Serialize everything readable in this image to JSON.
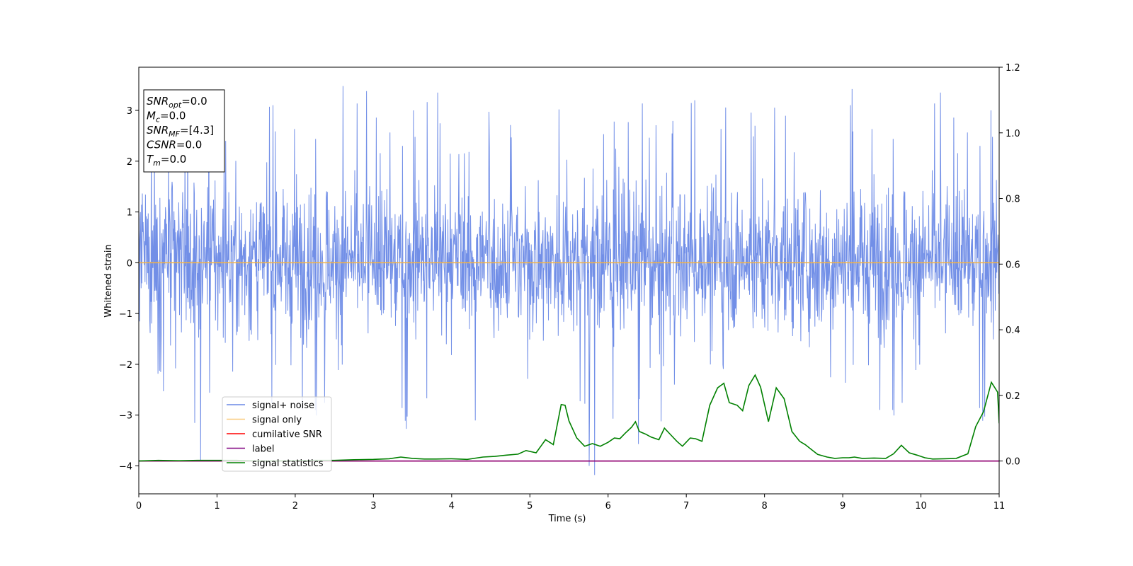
{
  "chart_data": {
    "type": "line",
    "title": "",
    "xlabel": "Time (s)",
    "ylabel": "Whitened strain",
    "y2label": "",
    "xlim": [
      0,
      11
    ],
    "ylim": [
      -4.55,
      3.85
    ],
    "y2lim": [
      -0.1,
      1.2
    ],
    "x_ticks": [
      0,
      1,
      2,
      3,
      4,
      5,
      6,
      7,
      8,
      9,
      10,
      11
    ],
    "y_ticks": [
      -4,
      -3,
      -2,
      -1,
      0,
      1,
      2,
      3
    ],
    "y2_ticks": [
      0.0,
      0.2,
      0.4,
      0.6,
      0.8,
      1.0,
      1.2
    ],
    "grid": false,
    "legend_position": "lower-left",
    "series": [
      {
        "name": "signal+ noise",
        "axis": "left",
        "color": "#6a89e6",
        "kind": "noise",
        "sample_count": 2200,
        "value_range": [
          -4.2,
          3.5
        ],
        "typical_std": 0.9,
        "spikes": [
          {
            "x": 0.79,
            "y": -3.9
          },
          {
            "x": 2.61,
            "y": 3.48
          },
          {
            "x": 2.91,
            "y": 3.38
          },
          {
            "x": 3.42,
            "y": -3.27
          },
          {
            "x": 3.82,
            "y": 3.35
          },
          {
            "x": 5.76,
            "y": -4.0
          },
          {
            "x": 5.83,
            "y": -4.18
          },
          {
            "x": 6.39,
            "y": -3.57
          },
          {
            "x": 7.11,
            "y": 3.2
          },
          {
            "x": 9.12,
            "y": 3.42
          },
          {
            "x": 10.25,
            "y": 3.35
          }
        ]
      },
      {
        "name": "signal only",
        "axis": "left",
        "color": "#f5b342",
        "x": [
          0,
          11
        ],
        "y": [
          0,
          0
        ]
      },
      {
        "name": "cumilative SNR",
        "axis": "right",
        "color": "#ff0000",
        "x": [
          0,
          11
        ],
        "y": [
          0,
          0
        ]
      },
      {
        "name": "label",
        "axis": "right",
        "color": "#800080",
        "x": [
          0,
          11
        ],
        "y": [
          0,
          0
        ]
      },
      {
        "name": "signal statistics",
        "axis": "right",
        "color": "#008000",
        "x": [
          0,
          0.25,
          0.5,
          0.75,
          1.0,
          1.25,
          1.5,
          1.75,
          2.0,
          2.25,
          2.5,
          2.75,
          3.0,
          3.2,
          3.35,
          3.5,
          3.65,
          3.8,
          4.0,
          4.2,
          4.4,
          4.55,
          4.7,
          4.85,
          4.95,
          5.08,
          5.2,
          5.3,
          5.4,
          5.45,
          5.5,
          5.6,
          5.7,
          5.8,
          5.9,
          6.0,
          6.08,
          6.15,
          6.22,
          6.3,
          6.35,
          6.4,
          6.48,
          6.55,
          6.65,
          6.72,
          6.8,
          6.88,
          6.95,
          7.05,
          7.12,
          7.2,
          7.3,
          7.4,
          7.48,
          7.55,
          7.65,
          7.72,
          7.8,
          7.88,
          7.95,
          8.05,
          8.15,
          8.25,
          8.35,
          8.45,
          8.52,
          8.6,
          8.68,
          8.8,
          8.9,
          9.0,
          9.08,
          9.15,
          9.25,
          9.4,
          9.55,
          9.65,
          9.75,
          9.85,
          9.95,
          10.05,
          10.15,
          10.3,
          10.45,
          10.6,
          10.7,
          10.8,
          10.9,
          10.98,
          11.0
        ],
        "y": [
          0.0,
          0.002,
          0.001,
          0.002,
          0.002,
          0.002,
          0.0,
          0.0,
          0.001,
          0.002,
          0.002,
          0.004,
          0.005,
          0.007,
          0.012,
          0.008,
          0.006,
          0.006,
          0.007,
          0.005,
          0.012,
          0.014,
          0.018,
          0.021,
          0.032,
          0.025,
          0.065,
          0.05,
          0.172,
          0.17,
          0.122,
          0.07,
          0.045,
          0.053,
          0.045,
          0.057,
          0.07,
          0.068,
          0.085,
          0.103,
          0.12,
          0.09,
          0.082,
          0.073,
          0.065,
          0.1,
          0.08,
          0.06,
          0.045,
          0.07,
          0.068,
          0.06,
          0.17,
          0.223,
          0.237,
          0.178,
          0.17,
          0.153,
          0.23,
          0.262,
          0.225,
          0.12,
          0.223,
          0.19,
          0.09,
          0.06,
          0.05,
          0.035,
          0.02,
          0.012,
          0.008,
          0.01,
          0.01,
          0.012,
          0.008,
          0.009,
          0.008,
          0.022,
          0.048,
          0.025,
          0.018,
          0.01,
          0.006,
          0.007,
          0.008,
          0.022,
          0.105,
          0.15,
          0.24,
          0.21,
          0.115
        ]
      }
    ],
    "annotation": {
      "lines": [
        {
          "var": "SNR",
          "sub": "opt",
          "value": "=0.0"
        },
        {
          "var": "M",
          "sub": "c",
          "value": "=0.0"
        },
        {
          "var": "SNR",
          "sub": "MF",
          "value": "=[4.3]"
        },
        {
          "var": "CSNR",
          "sub": "",
          "value": "=0.0"
        },
        {
          "var": "T",
          "sub": "m",
          "value": "=0.0"
        }
      ]
    }
  }
}
